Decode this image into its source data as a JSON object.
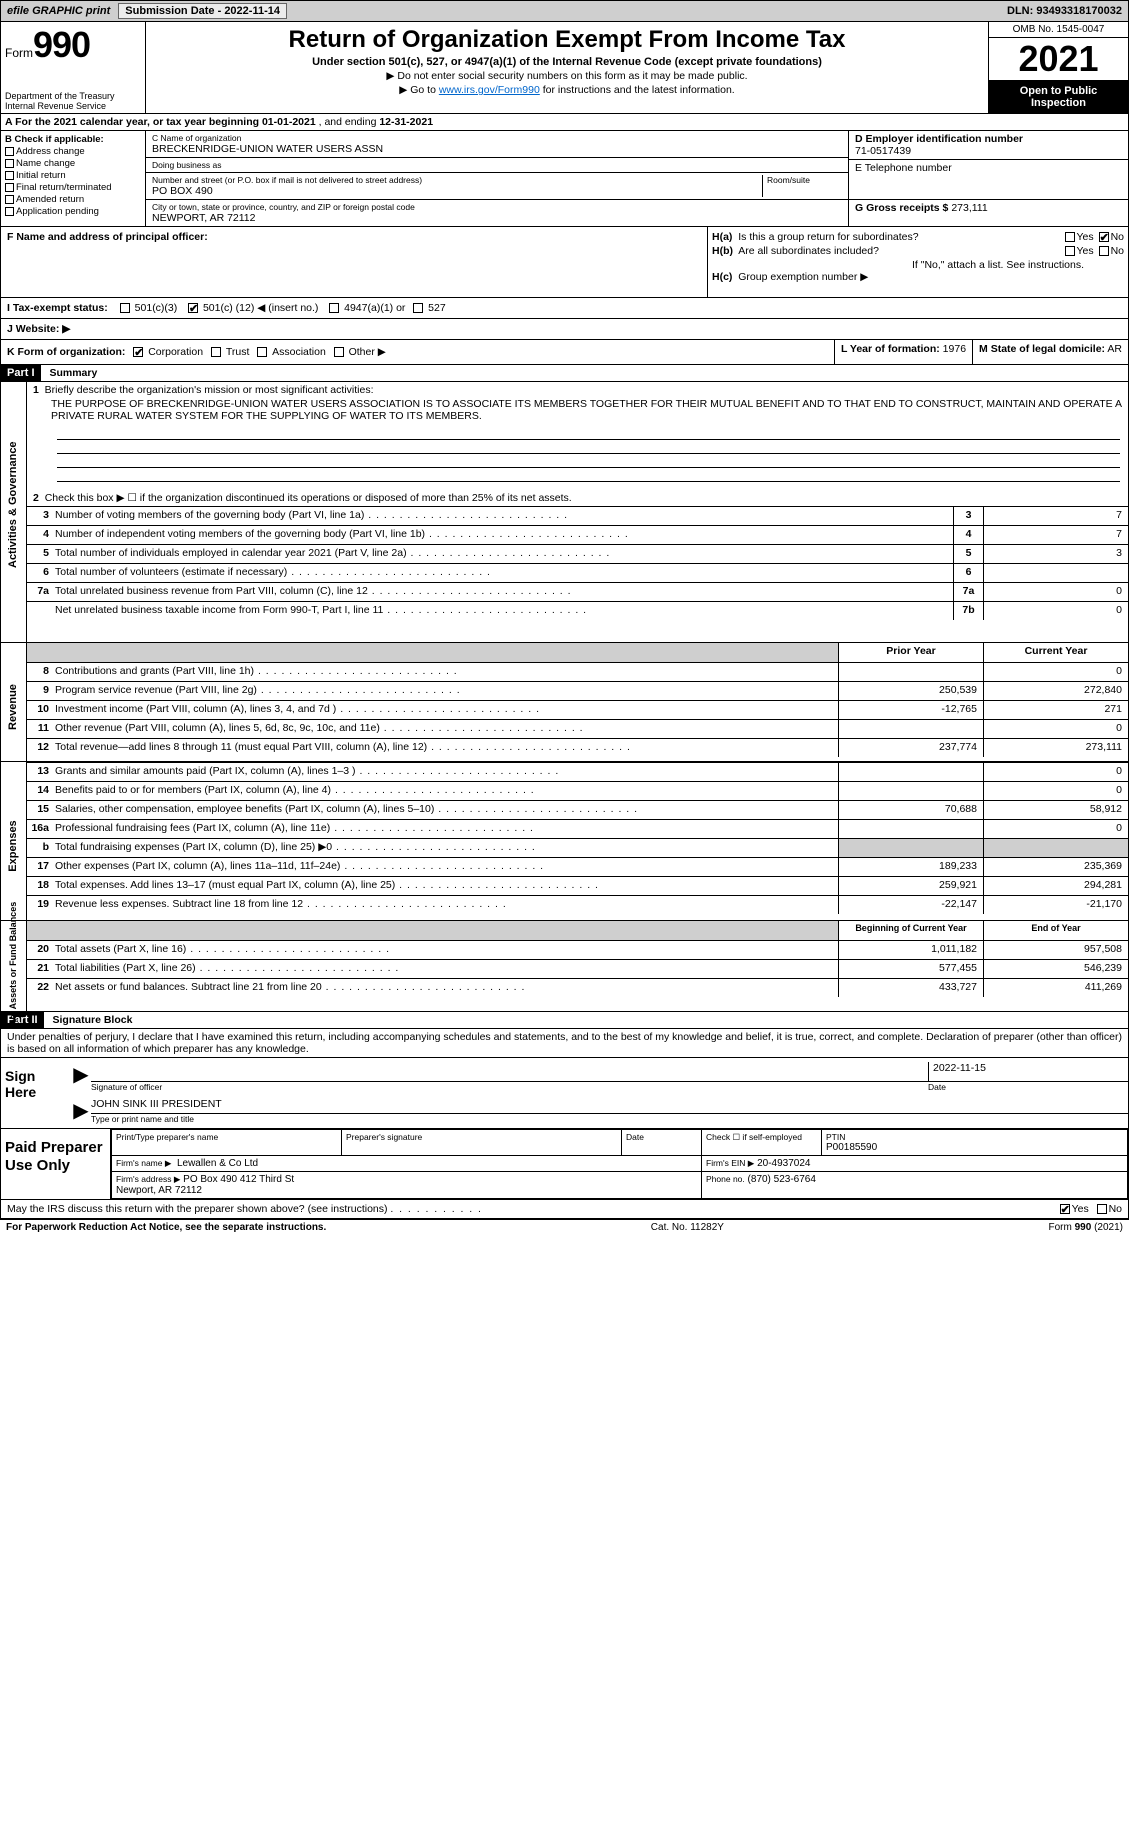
{
  "topbar": {
    "efile": "efile GRAPHIC print",
    "submission": "Submission Date - 2022-11-14",
    "dln": "DLN: 93493318170032"
  },
  "header": {
    "form_prefix": "Form",
    "form_no": "990",
    "title": "Return of Organization Exempt From Income Tax",
    "subtitle": "Under section 501(c), 527, or 4947(a)(1) of the Internal Revenue Code (except private foundations)",
    "arrow1": "▶ Do not enter social security numbers on this form as it may be made public.",
    "arrow2_pre": "▶ Go to ",
    "arrow2_link": "www.irs.gov/Form990",
    "arrow2_post": " for instructions and the latest information.",
    "dept": "Department of the Treasury\nInternal Revenue Service",
    "omb": "OMB No. 1545-0047",
    "year": "2021",
    "inspect": "Open to Public Inspection"
  },
  "line_a": {
    "text_pre": "A For the 2021 calendar year, or tax year beginning ",
    "begin": "01-01-2021",
    "mid": " , and ending ",
    "end": "12-31-2021"
  },
  "col_b": {
    "header": "B Check if applicable:",
    "items": [
      "Address change",
      "Name change",
      "Initial return",
      "Final return/terminated",
      "Amended return",
      "Application pending"
    ]
  },
  "col_c": {
    "name_label": "C Name of organization",
    "name": "BRECKENRIDGE-UNION WATER USERS ASSN",
    "dba_label": "Doing business as",
    "dba": "",
    "street_label": "Number and street (or P.O. box if mail is not delivered to street address)",
    "room_label": "Room/suite",
    "street": "PO BOX 490",
    "city_label": "City or town, state or province, country, and ZIP or foreign postal code",
    "city": "NEWPORT, AR  72112"
  },
  "col_de": {
    "d_label": "D Employer identification number",
    "d_val": "71-0517439",
    "e_label": "E Telephone number",
    "e_val": "",
    "g_label": "G Gross receipts $",
    "g_val": "273,111"
  },
  "row_f": {
    "label": "F  Name and address of principal officer:",
    "val": ""
  },
  "row_h": {
    "a_label": "H(a)  Is this a group return for subordinates?",
    "b_label": "H(b)  Are all subordinates included?",
    "b_note": "If \"No,\" attach a list. See instructions.",
    "c_label": "H(c)  Group exemption number ▶",
    "yes": "Yes",
    "no": "No"
  },
  "row_i": {
    "label": "I  Tax-exempt status:",
    "o1": "501(c)(3)",
    "o2_pre": "501(c) (",
    "o2_num": "12",
    "o2_post": ") ◀ (insert no.)",
    "o3": "4947(a)(1) or",
    "o4": "527"
  },
  "row_j": {
    "label": "J  Website: ▶",
    "val": ""
  },
  "row_k": {
    "label": "K Form of organization:",
    "opts": [
      "Corporation",
      "Trust",
      "Association",
      "Other ▶"
    ]
  },
  "row_lm": {
    "l_label": "L Year of formation:",
    "l_val": "1976",
    "m_label": "M State of legal domicile:",
    "m_val": "AR"
  },
  "part1": {
    "tag": "Part I",
    "title": "Summary",
    "line1_label": "1  Briefly describe the organization's mission or most significant activities:",
    "mission": "THE PURPOSE OF BRECKENRIDGE-UNION WATER USERS ASSOCIATION IS TO ASSOCIATE ITS MEMBERS TOGETHER FOR THEIR MUTUAL BENEFIT AND TO THAT END TO CONSTRUCT, MAINTAIN AND OPERATE A PRIVATE RURAL WATER SYSTEM FOR THE SUPPLYING OF WATER TO ITS MEMBERS.",
    "line2": "Check this box ▶ ☐  if the organization discontinued its operations or disposed of more than 25% of its net assets.",
    "side_label": "Activities & Governance",
    "rows_gov": [
      {
        "n": "3",
        "d": "Number of voting members of the governing body (Part VI, line 1a)",
        "box": "3",
        "v": "7"
      },
      {
        "n": "4",
        "d": "Number of independent voting members of the governing body (Part VI, line 1b)",
        "box": "4",
        "v": "7"
      },
      {
        "n": "5",
        "d": "Total number of individuals employed in calendar year 2021 (Part V, line 2a)",
        "box": "5",
        "v": "3"
      },
      {
        "n": "6",
        "d": "Total number of volunteers (estimate if necessary)",
        "box": "6",
        "v": ""
      },
      {
        "n": "7a",
        "d": "Total unrelated business revenue from Part VIII, column (C), line 12",
        "box": "7a",
        "v": "0"
      },
      {
        "n": "",
        "d": "Net unrelated business taxable income from Form 990-T, Part I, line 11",
        "box": "7b",
        "v": "0"
      }
    ],
    "col_prior": "Prior Year",
    "col_current": "Current Year",
    "side_rev": "Revenue",
    "rows_rev": [
      {
        "n": "8",
        "d": "Contributions and grants (Part VIII, line 1h)",
        "p": "",
        "c": "0"
      },
      {
        "n": "9",
        "d": "Program service revenue (Part VIII, line 2g)",
        "p": "250,539",
        "c": "272,840"
      },
      {
        "n": "10",
        "d": "Investment income (Part VIII, column (A), lines 3, 4, and 7d )",
        "p": "-12,765",
        "c": "271"
      },
      {
        "n": "11",
        "d": "Other revenue (Part VIII, column (A), lines 5, 6d, 8c, 9c, 10c, and 11e)",
        "p": "",
        "c": "0"
      },
      {
        "n": "12",
        "d": "Total revenue—add lines 8 through 11 (must equal Part VIII, column (A), line 12)",
        "p": "237,774",
        "c": "273,111"
      }
    ],
    "side_exp": "Expenses",
    "rows_exp": [
      {
        "n": "13",
        "d": "Grants and similar amounts paid (Part IX, column (A), lines 1–3 )",
        "p": "",
        "c": "0"
      },
      {
        "n": "14",
        "d": "Benefits paid to or for members (Part IX, column (A), line 4)",
        "p": "",
        "c": "0"
      },
      {
        "n": "15",
        "d": "Salaries, other compensation, employee benefits (Part IX, column (A), lines 5–10)",
        "p": "70,688",
        "c": "58,912"
      },
      {
        "n": "16a",
        "d": "Professional fundraising fees (Part IX, column (A), line 11e)",
        "p": "",
        "c": "0"
      },
      {
        "n": "b",
        "d": "Total fundraising expenses (Part IX, column (D), line 25) ▶0",
        "p": "GREY",
        "c": "GREY"
      },
      {
        "n": "17",
        "d": "Other expenses (Part IX, column (A), lines 11a–11d, 11f–24e)",
        "p": "189,233",
        "c": "235,369"
      },
      {
        "n": "18",
        "d": "Total expenses. Add lines 13–17 (must equal Part IX, column (A), line 25)",
        "p": "259,921",
        "c": "294,281"
      },
      {
        "n": "19",
        "d": "Revenue less expenses. Subtract line 18 from line 12",
        "p": "-22,147",
        "c": "-21,170"
      }
    ],
    "col_begin": "Beginning of Current Year",
    "col_end": "End of Year",
    "side_net": "Net Assets or Fund Balances",
    "rows_net": [
      {
        "n": "20",
        "d": "Total assets (Part X, line 16)",
        "p": "1,011,182",
        "c": "957,508"
      },
      {
        "n": "21",
        "d": "Total liabilities (Part X, line 26)",
        "p": "577,455",
        "c": "546,239"
      },
      {
        "n": "22",
        "d": "Net assets or fund balances. Subtract line 21 from line 20",
        "p": "433,727",
        "c": "411,269"
      }
    ]
  },
  "part2": {
    "tag": "Part II",
    "title": "Signature Block",
    "penalties": "Under penalties of perjury, I declare that I have examined this return, including accompanying schedules and statements, and to the best of my knowledge and belief, it is true, correct, and complete. Declaration of preparer (other than officer) is based on all information of which preparer has any knowledge.",
    "sign_here": "Sign Here",
    "sig_officer": "Signature of officer",
    "sig_date": "Date",
    "sig_date_val": "2022-11-15",
    "officer_name": "JOHN SINK III PRESIDENT",
    "officer_label": "Type or print name and title",
    "paid": "Paid Preparer Use Only",
    "pt_name_label": "Print/Type preparer's name",
    "pt_name": "",
    "pt_sig_label": "Preparer's signature",
    "pt_date_label": "Date",
    "pt_check": "Check ☐ if self-employed",
    "ptin_label": "PTIN",
    "ptin": "P00185590",
    "firm_name_label": "Firm's name    ▶",
    "firm_name": "Lewallen & Co Ltd",
    "firm_ein_label": "Firm's EIN ▶",
    "firm_ein": "20-4937024",
    "firm_addr_label": "Firm's address ▶",
    "firm_addr": "PO Box 490 412 Third St\nNewport, AR  72112",
    "phone_label": "Phone no.",
    "phone": "(870) 523-6764",
    "may_discuss": "May the IRS discuss this return with the preparer shown above? (see instructions)",
    "yes": "Yes",
    "no": "No"
  },
  "footer": {
    "left": "For Paperwork Reduction Act Notice, see the separate instructions.",
    "mid": "Cat. No. 11282Y",
    "right_pre": "Form ",
    "right_form": "990",
    "right_post": " (2021)"
  }
}
